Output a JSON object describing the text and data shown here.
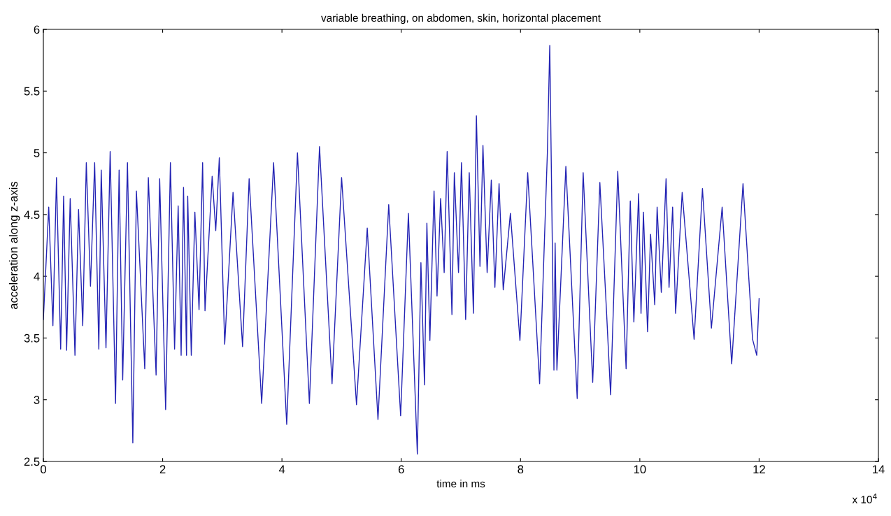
{
  "chart_data": {
    "type": "line",
    "title": "variable breathing, on abdomen, skin, horizontal placement",
    "xlabel": "time in ms",
    "ylabel": "acceleration along z-axis",
    "x": [
      0,
      0.09,
      0.16,
      0.22,
      0.29,
      0.34,
      0.39,
      0.45,
      0.53,
      0.59,
      0.66,
      0.72,
      0.79,
      0.86,
      0.93,
      0.97,
      1.05,
      1.12,
      1.21,
      1.27,
      1.33,
      1.41,
      1.5,
      1.56,
      1.7,
      1.76,
      1.89,
      1.95,
      2.05,
      2.13,
      2.2,
      2.26,
      2.31,
      2.35,
      2.4,
      2.42,
      2.48,
      2.54,
      2.61,
      2.67,
      2.71,
      2.83,
      2.89,
      2.95,
      3.04,
      3.18,
      3.34,
      3.45,
      3.66,
      3.86,
      4.08,
      4.26,
      4.46,
      4.63,
      4.84,
      5.0,
      5.25,
      5.43,
      5.61,
      5.79,
      5.99,
      6.12,
      6.27,
      6.33,
      6.39,
      6.43,
      6.48,
      6.55,
      6.6,
      6.66,
      6.72,
      6.77,
      6.85,
      6.89,
      6.96,
      7.01,
      7.08,
      7.14,
      7.21,
      7.26,
      7.32,
      7.37,
      7.44,
      7.51,
      7.57,
      7.64,
      7.71,
      7.83,
      7.99,
      8.12,
      8.32,
      8.45,
      8.49,
      8.56,
      8.58,
      8.61,
      8.76,
      8.95,
      9.05,
      9.21,
      9.33,
      9.44,
      9.51,
      9.63,
      9.77,
      9.84,
      9.9,
      9.98,
      10.02,
      10.06,
      10.13,
      10.18,
      10.25,
      10.29,
      10.36,
      10.44,
      10.49,
      10.55,
      10.6,
      10.71,
      10.91,
      11.05,
      11.2,
      11.38,
      11.54,
      11.73,
      11.89,
      11.96,
      12.0
    ],
    "series": [
      {
        "color": "#2424b4",
        "values": [
          3.65,
          4.56,
          3.6,
          4.8,
          3.41,
          4.65,
          3.4,
          4.63,
          3.36,
          4.54,
          3.6,
          4.92,
          3.92,
          4.92,
          3.41,
          4.86,
          3.42,
          5.01,
          2.97,
          4.86,
          3.16,
          4.92,
          2.65,
          4.69,
          3.25,
          4.8,
          3.2,
          4.79,
          2.92,
          4.92,
          3.41,
          4.57,
          3.36,
          4.72,
          3.36,
          4.65,
          3.36,
          4.52,
          3.73,
          4.92,
          3.72,
          4.81,
          4.37,
          4.96,
          3.45,
          4.68,
          3.43,
          4.79,
          2.97,
          4.92,
          2.8,
          5.0,
          2.97,
          5.05,
          3.13,
          4.8,
          2.96,
          4.39,
          2.84,
          4.58,
          2.87,
          4.51,
          2.56,
          4.11,
          3.12,
          4.43,
          3.48,
          4.69,
          3.84,
          4.63,
          4.03,
          5.01,
          3.69,
          4.84,
          4.03,
          4.92,
          3.65,
          4.84,
          3.7,
          5.3,
          4.08,
          5.06,
          4.03,
          4.78,
          3.91,
          4.75,
          3.89,
          4.51,
          3.48,
          4.84,
          3.13,
          5.0,
          5.87,
          3.24,
          4.27,
          3.24,
          4.89,
          3.01,
          4.84,
          3.14,
          4.76,
          3.73,
          3.04,
          4.85,
          3.25,
          4.61,
          3.63,
          4.67,
          3.7,
          4.52,
          3.55,
          4.34,
          3.77,
          4.56,
          3.87,
          4.79,
          3.91,
          4.56,
          3.7,
          4.68,
          3.49,
          4.71,
          3.58,
          4.56,
          3.29,
          4.75,
          3.49,
          3.36,
          3.82
        ]
      }
    ],
    "xlim": [
      0,
      14
    ],
    "xticks": [
      0,
      2,
      4,
      6,
      8,
      10,
      12,
      14
    ],
    "ylim": [
      2.5,
      6
    ],
    "yticks": [
      2.5,
      3,
      3.5,
      4,
      4.5,
      5,
      5.5,
      6
    ],
    "annotations": [
      "x 10$^{4}$"
    ]
  }
}
